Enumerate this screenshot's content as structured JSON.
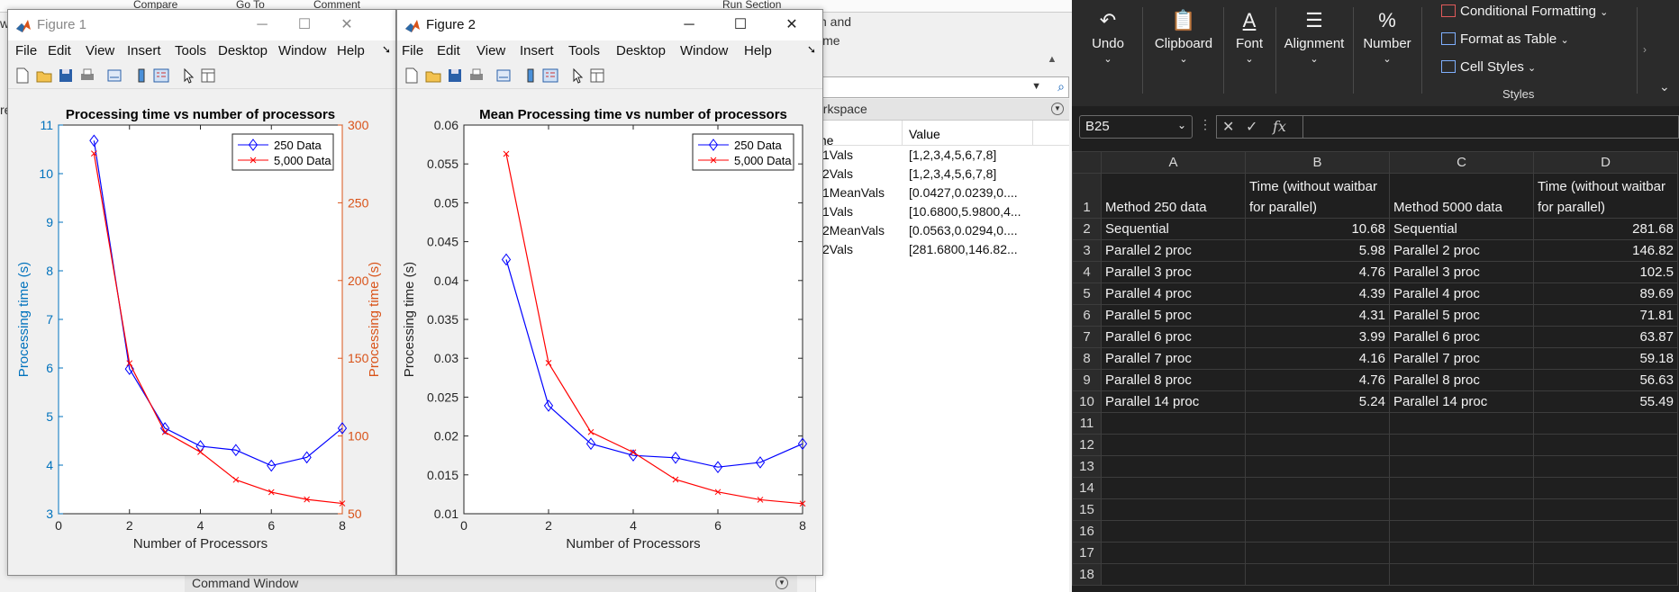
{
  "matlab": {
    "toolstrip_fragments": [
      "Compare",
      "Go To",
      "Comment",
      "Run Section"
    ],
    "side_text_1": "n and",
    "side_text_2": "ime",
    "side_text_left": [
      "w",
      "re"
    ],
    "workspace": {
      "title": "orkspace",
      "col_name": "me",
      "col_value": "Value",
      "vars": [
        {
          "name": "x1Vals",
          "value": "[1,2,3,4,5,6,7,8]"
        },
        {
          "name": "x2Vals",
          "value": "[1,2,3,4,5,6,7,8]"
        },
        {
          "name": "y1MeanVals",
          "value": "[0.0427,0.0239,0...."
        },
        {
          "name": "y1Vals",
          "value": "[10.6800,5.9800,4..."
        },
        {
          "name": "y2MeanVals",
          "value": "[0.0563,0.0294,0...."
        },
        {
          "name": "y2Vals",
          "value": "[281.6800,146.82..."
        }
      ]
    },
    "command_window": "Command Window"
  },
  "figures": [
    {
      "title": "Figure 1",
      "active": false,
      "menu": [
        "File",
        "Edit",
        "View",
        "Insert",
        "Tools",
        "Desktop",
        "Window",
        "Help"
      ]
    },
    {
      "title": "Figure 2",
      "active": true,
      "menu": [
        "File",
        "Edit",
        "View",
        "Insert",
        "Tools",
        "Desktop",
        "Window",
        "Help"
      ]
    }
  ],
  "chart_data": [
    {
      "type": "line",
      "title": "Processing time vs number of processors",
      "xlabel": "Number of Processors",
      "ylabel": "Processing time (s)",
      "ylabel_right": "Processing time (s)",
      "xlim": [
        0,
        8
      ],
      "ylim": [
        3,
        11
      ],
      "ylim_right": [
        50,
        300
      ],
      "xticks": [
        0,
        2,
        4,
        6,
        8
      ],
      "yticks": [
        3,
        4,
        5,
        6,
        7,
        8,
        9,
        10,
        11
      ],
      "yticks_right": [
        50,
        100,
        150,
        200,
        250,
        300
      ],
      "legend_placement": "top-right",
      "series": [
        {
          "name": "250 Data",
          "axis": "left",
          "color": "#0000ff",
          "marker": "diamond",
          "x": [
            1,
            2,
            3,
            4,
            5,
            6,
            7,
            8
          ],
          "values": [
            10.68,
            5.98,
            4.76,
            4.39,
            4.31,
            3.99,
            4.16,
            4.76
          ]
        },
        {
          "name": "5,000 Data",
          "axis": "right",
          "color": "#ff0000",
          "marker": "x",
          "x": [
            1,
            2,
            3,
            4,
            5,
            6,
            7,
            8
          ],
          "values": [
            281.68,
            146.82,
            102.5,
            89.69,
            71.81,
            63.87,
            59.18,
            56.63
          ]
        }
      ],
      "left_axis_color": "#0072bd",
      "right_axis_color": "#d95319"
    },
    {
      "type": "line",
      "title": "Mean Processing time vs number of processors",
      "xlabel": "Number of Processors",
      "ylabel": "Processing time (s)",
      "xlim": [
        0,
        8
      ],
      "ylim": [
        0.01,
        0.06
      ],
      "xticks": [
        0,
        2,
        4,
        6,
        8
      ],
      "yticks": [
        0.01,
        0.015,
        0.02,
        0.025,
        0.03,
        0.035,
        0.04,
        0.045,
        0.05,
        0.055,
        0.06
      ],
      "ytick_labels": [
        "0.01",
        "0.015",
        "0.02",
        "0.025",
        "0.03",
        "0.035",
        "0.04",
        "0.045",
        "0.05",
        "0.055",
        "0.06"
      ],
      "legend_placement": "top-right",
      "series": [
        {
          "name": "250 Data",
          "color": "#0000ff",
          "marker": "diamond",
          "x": [
            1,
            2,
            3,
            4,
            5,
            6,
            7,
            8
          ],
          "values": [
            0.0427,
            0.0239,
            0.019,
            0.0175,
            0.0172,
            0.016,
            0.0166,
            0.019
          ]
        },
        {
          "name": "5,000 Data",
          "color": "#ff0000",
          "marker": "x",
          "x": [
            1,
            2,
            3,
            4,
            5,
            6,
            7,
            8
          ],
          "values": [
            0.0563,
            0.0294,
            0.0205,
            0.0179,
            0.0144,
            0.0128,
            0.0118,
            0.0113
          ]
        }
      ]
    }
  ],
  "excel": {
    "ribbon": {
      "undo": "Undo",
      "clipboard": "Clipboard",
      "font": "Font",
      "alignment": "Alignment",
      "number": "Number",
      "conditional_formatting": "Conditional Formatting",
      "format_as_table": "Format as Table",
      "cell_styles": "Cell Styles",
      "styles_group": "Styles"
    },
    "name_box": "B25",
    "fx": "fx",
    "columns": [
      "A",
      "B",
      "C",
      "D"
    ],
    "header_row": [
      "Method 250 data",
      "Time (without waitbar for parallel)",
      "Method 5000 data",
      "Time (without waitbar for parallel)"
    ],
    "rows": [
      [
        "Sequential",
        "10.68",
        "Sequential",
        "281.68"
      ],
      [
        "Parallel 2 proc",
        "5.98",
        "Parallel 2 proc",
        "146.82"
      ],
      [
        "Parallel 3 proc",
        "4.76",
        "Parallel 3 proc",
        "102.5"
      ],
      [
        "Parallel 4 proc",
        "4.39",
        "Parallel 4 proc",
        "89.69"
      ],
      [
        "Parallel 5 proc",
        "4.31",
        "Parallel 5 proc",
        "71.81"
      ],
      [
        "Parallel 6 proc",
        "3.99",
        "Parallel 6 proc",
        "63.87"
      ],
      [
        "Parallel 7 proc",
        "4.16",
        "Parallel 7 proc",
        "59.18"
      ],
      [
        "Parallel 8 proc",
        "4.76",
        "Parallel 8 proc",
        "56.63"
      ],
      [
        "Parallel 14 proc",
        "5.24",
        "Parallel 14 proc",
        "55.49"
      ]
    ],
    "row_numbers": [
      "1",
      "2",
      "3",
      "4",
      "5",
      "6",
      "7",
      "8",
      "9",
      "10",
      "11",
      "12",
      "13",
      "14",
      "15",
      "16",
      "17",
      "18"
    ]
  }
}
